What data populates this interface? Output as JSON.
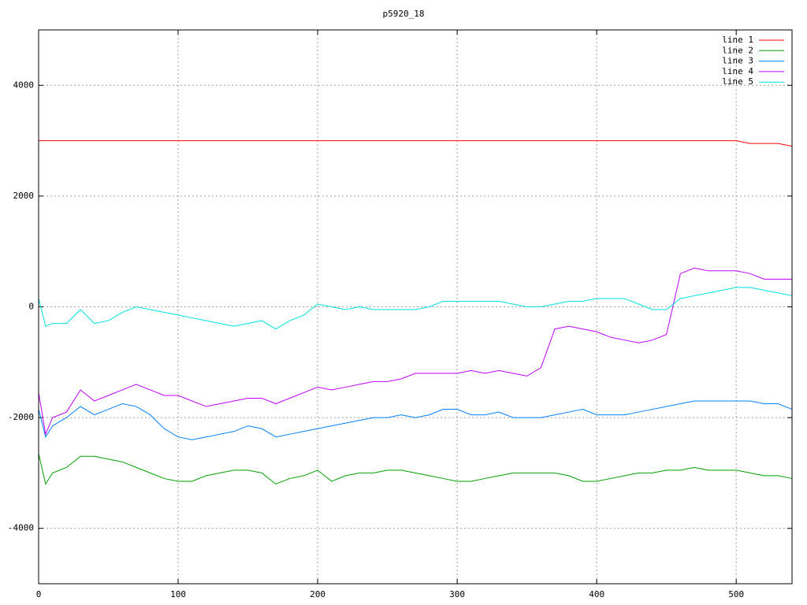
{
  "chart_data": {
    "type": "line",
    "title": "p5920_18",
    "x": [
      0,
      5,
      10,
      20,
      30,
      40,
      50,
      60,
      70,
      80,
      90,
      100,
      110,
      120,
      130,
      140,
      150,
      160,
      170,
      180,
      190,
      200,
      210,
      220,
      230,
      240,
      250,
      260,
      270,
      280,
      290,
      300,
      310,
      320,
      330,
      340,
      350,
      360,
      370,
      380,
      390,
      400,
      410,
      420,
      430,
      440,
      450,
      460,
      470,
      480,
      490,
      500,
      510,
      520,
      530,
      540
    ],
    "xlim": [
      0,
      540
    ],
    "ylim": [
      -5000,
      5000
    ],
    "xticks": [
      0,
      100,
      200,
      300,
      400,
      500
    ],
    "yticks": [
      -4000,
      -2000,
      0,
      2000,
      4000
    ],
    "grid": true,
    "legend": "top-right",
    "series": [
      {
        "name": "line 1",
        "color": "#ff0000",
        "values": [
          3000,
          3000,
          3000,
          3000,
          3000,
          3000,
          3000,
          3000,
          3000,
          3000,
          3000,
          3000,
          3000,
          3000,
          3000,
          3000,
          3000,
          3000,
          3000,
          3000,
          3000,
          3000,
          3000,
          3000,
          3000,
          3000,
          3000,
          3000,
          3000,
          3000,
          3000,
          3000,
          3000,
          3000,
          3000,
          3000,
          3000,
          3000,
          3000,
          3000,
          3000,
          3000,
          3000,
          3000,
          3000,
          3000,
          3000,
          3000,
          3000,
          3000,
          3000,
          3000,
          2950,
          2950,
          2950,
          2900
        ]
      },
      {
        "name": "line 2",
        "color": "#00a000",
        "values": [
          -2650,
          -3200,
          -3000,
          -2900,
          -2700,
          -2700,
          -2750,
          -2800,
          -2900,
          -3000,
          -3100,
          -3150,
          -3150,
          -3050,
          -3000,
          -2950,
          -2950,
          -3000,
          -3200,
          -3100,
          -3050,
          -2950,
          -3150,
          -3050,
          -3000,
          -3000,
          -2950,
          -2950,
          -3000,
          -3050,
          -3100,
          -3150,
          -3150,
          -3100,
          -3050,
          -3000,
          -3000,
          -3000,
          -3000,
          -3050,
          -3150,
          -3150,
          -3100,
          -3050,
          -3000,
          -3000,
          -2950,
          -2950,
          -2900,
          -2950,
          -2950,
          -2950,
          -3000,
          -3050,
          -3050,
          -3100
        ]
      },
      {
        "name": "line 3",
        "color": "#0080ff",
        "values": [
          -1850,
          -2350,
          -2150,
          -2000,
          -1800,
          -1950,
          -1850,
          -1750,
          -1800,
          -1950,
          -2200,
          -2350,
          -2400,
          -2350,
          -2300,
          -2250,
          -2150,
          -2200,
          -2350,
          -2300,
          -2250,
          -2200,
          -2150,
          -2100,
          -2050,
          -2000,
          -2000,
          -1950,
          -2000,
          -1950,
          -1850,
          -1850,
          -1950,
          -1950,
          -1900,
          -2000,
          -2000,
          -2000,
          -1950,
          -1900,
          -1850,
          -1950,
          -1950,
          -1950,
          -1900,
          -1850,
          -1800,
          -1750,
          -1700,
          -1700,
          -1700,
          -1700,
          -1700,
          -1750,
          -1750,
          -1850
        ]
      },
      {
        "name": "line 4",
        "color": "#c000ff",
        "values": [
          -1550,
          -2300,
          -2000,
          -1900,
          -1500,
          -1700,
          -1600,
          -1500,
          -1400,
          -1500,
          -1600,
          -1600,
          -1700,
          -1800,
          -1750,
          -1700,
          -1650,
          -1650,
          -1750,
          -1650,
          -1550,
          -1450,
          -1500,
          -1450,
          -1400,
          -1350,
          -1350,
          -1300,
          -1200,
          -1200,
          -1200,
          -1200,
          -1150,
          -1200,
          -1150,
          -1200,
          -1250,
          -1100,
          -400,
          -350,
          -400,
          -450,
          -550,
          -600,
          -650,
          -600,
          -500,
          600,
          700,
          650,
          650,
          650,
          600,
          500,
          500,
          500
        ]
      },
      {
        "name": "line 5",
        "color": "#00e0e0",
        "values": [
          150,
          -350,
          -300,
          -300,
          -50,
          -300,
          -250,
          -100,
          0,
          -50,
          -100,
          -150,
          -200,
          -250,
          -300,
          -350,
          -300,
          -250,
          -400,
          -250,
          -150,
          50,
          0,
          -50,
          0,
          -50,
          -50,
          -50,
          -50,
          0,
          100,
          100,
          100,
          100,
          100,
          50,
          0,
          0,
          50,
          100,
          100,
          150,
          150,
          150,
          50,
          -50,
          -50,
          150,
          200,
          250,
          300,
          350,
          350,
          300,
          250,
          200
        ]
      }
    ]
  }
}
